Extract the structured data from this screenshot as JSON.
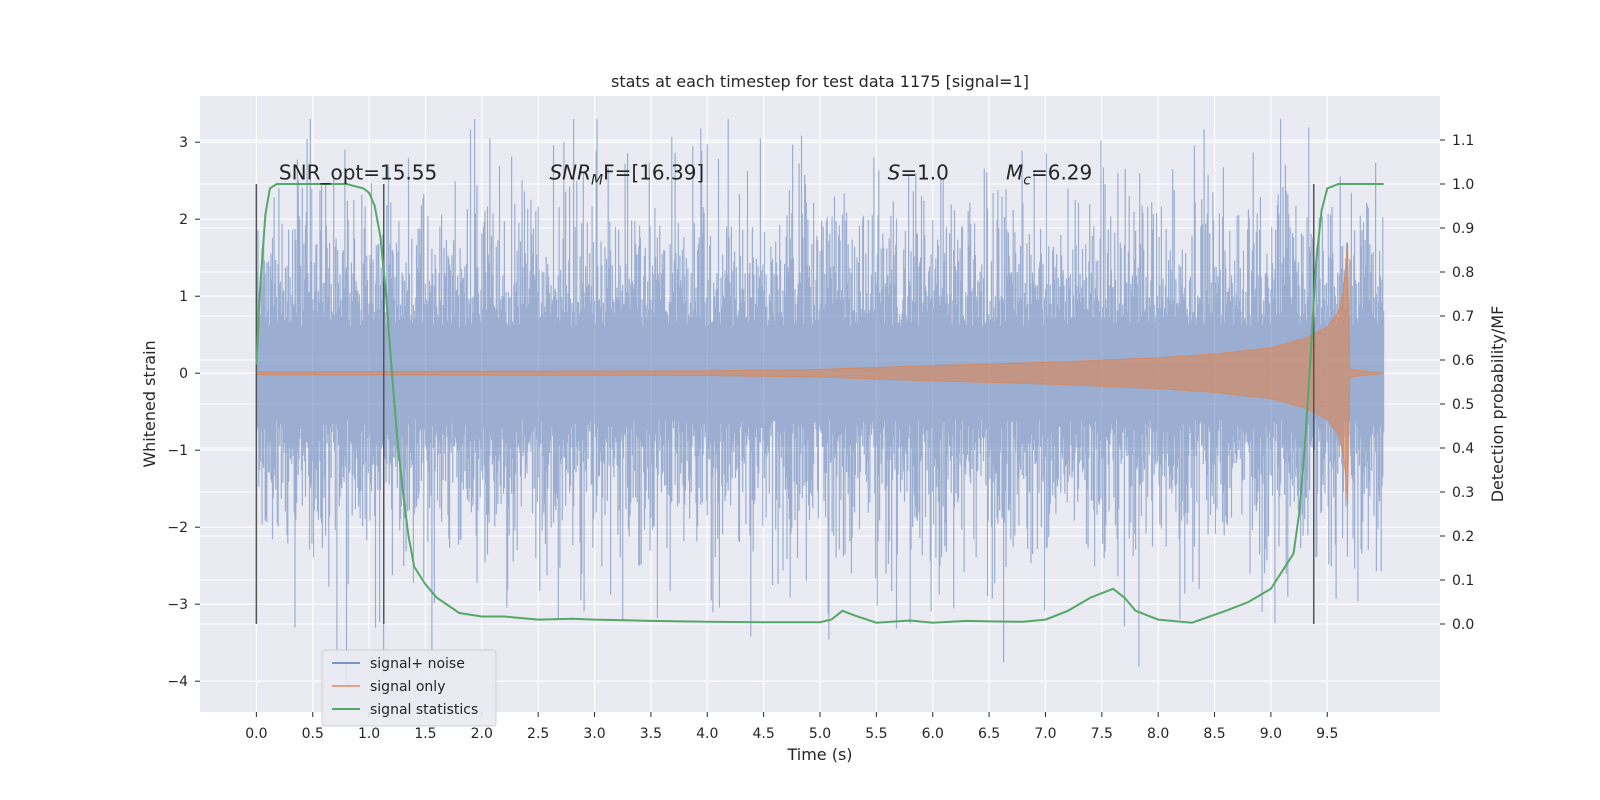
{
  "chart_data": {
    "type": "line",
    "title": "stats at each timestep for test data 1175 [signal=1]",
    "xlabel": "Time (s)",
    "ylabel": "Whitened strain",
    "ylabel_right": "Detection probability/MF",
    "xlim": [
      -0.5,
      10.5
    ],
    "ylim": [
      -4.4,
      3.6
    ],
    "ylim_right": [
      -0.2,
      1.2
    ],
    "x_ticks": [
      0.0,
      0.5,
      1.0,
      1.5,
      2.0,
      2.5,
      3.0,
      3.5,
      4.0,
      4.5,
      5.0,
      5.5,
      6.0,
      6.5,
      7.0,
      7.5,
      8.0,
      8.5,
      9.0,
      9.5
    ],
    "x_tick_labels": [
      "0.0",
      "0.5",
      "1.0",
      "1.5",
      "2.0",
      "2.5",
      "3.0",
      "3.5",
      "4.0",
      "4.5",
      "5.0",
      "5.5",
      "6.0",
      "6.5",
      "7.0",
      "7.5",
      "8.0",
      "8.5",
      "9.0",
      "9.5"
    ],
    "y_ticks": [
      -4,
      -3,
      -2,
      -1,
      0,
      1,
      2,
      3
    ],
    "y_tick_labels": [
      "−4",
      "−3",
      "−2",
      "−1",
      "0",
      "1",
      "2",
      "3"
    ],
    "y_right_ticks": [
      0.0,
      0.1,
      0.2,
      0.3,
      0.4,
      0.5,
      0.6,
      0.7,
      0.8,
      0.9,
      1.0,
      1.1
    ],
    "y_right_tick_labels": [
      "0.0",
      "0.1",
      "0.2",
      "0.3",
      "0.4",
      "0.5",
      "0.6",
      "0.7",
      "0.8",
      "0.9",
      "1.0",
      "1.1"
    ],
    "grid": true,
    "legend_position": "lower-left",
    "series": [
      {
        "name": "signal+ noise",
        "color": "#4c72b0",
        "axis": "left",
        "x_range": [
          0.0,
          10.0
        ],
        "typical_range": [
          -1.6,
          1.6
        ],
        "approx_extremes": {
          "max": 3.3,
          "min": -4.05
        }
      },
      {
        "name": "signal only",
        "color": "#dd8452",
        "axis": "left",
        "x_range": [
          0.0,
          10.0
        ],
        "envelope": {
          "x": [
            0.0,
            4.0,
            5.0,
            6.0,
            7.0,
            8.0,
            8.5,
            9.0,
            9.3,
            9.5,
            9.6,
            9.65,
            9.68,
            9.7,
            10.0
          ],
          "amplitude": [
            0.02,
            0.03,
            0.05,
            0.1,
            0.14,
            0.2,
            0.25,
            0.33,
            0.45,
            0.6,
            0.8,
            1.1,
            1.7,
            0.05,
            0.0
          ]
        }
      },
      {
        "name": "signal statistics",
        "color": "#55a868",
        "axis": "right",
        "x": [
          0.0,
          0.03,
          0.08,
          0.12,
          0.18,
          0.25,
          0.4,
          0.6,
          0.8,
          0.95,
          1.0,
          1.05,
          1.1,
          1.15,
          1.2,
          1.25,
          1.3,
          1.35,
          1.4,
          1.5,
          1.6,
          1.8,
          2.0,
          2.2,
          2.5,
          2.8,
          3.0,
          3.5,
          4.0,
          4.5,
          5.0,
          5.1,
          5.2,
          5.3,
          5.5,
          5.8,
          6.0,
          6.3,
          6.5,
          6.8,
          7.0,
          7.2,
          7.4,
          7.6,
          7.7,
          7.8,
          8.0,
          8.3,
          8.6,
          8.8,
          9.0,
          9.2,
          9.25,
          9.3,
          9.35,
          9.4,
          9.45,
          9.5,
          9.6,
          9.8,
          10.0
        ],
        "y": [
          0.59,
          0.75,
          0.93,
          0.99,
          1.0,
          1.0,
          1.0,
          1.0,
          1.0,
          0.99,
          0.98,
          0.95,
          0.88,
          0.75,
          0.58,
          0.42,
          0.3,
          0.2,
          0.13,
          0.09,
          0.06,
          0.025,
          0.017,
          0.017,
          0.01,
          0.012,
          0.01,
          0.007,
          0.005,
          0.004,
          0.004,
          0.01,
          0.03,
          0.02,
          0.003,
          0.008,
          0.003,
          0.007,
          0.006,
          0.005,
          0.01,
          0.03,
          0.06,
          0.08,
          0.06,
          0.03,
          0.01,
          0.003,
          0.03,
          0.05,
          0.08,
          0.16,
          0.25,
          0.4,
          0.6,
          0.82,
          0.94,
          0.99,
          1.0,
          1.0,
          1.0
        ]
      }
    ],
    "vlines": [
      {
        "x": 0.0,
        "color": "#555555"
      },
      {
        "x": 1.13,
        "color": "#555555"
      },
      {
        "x": 9.38,
        "color": "#555555"
      }
    ],
    "annotations": [
      {
        "text": "SNR_opt=15.55",
        "x": 0.2
      },
      {
        "text": "SNR",
        "subscript": "M",
        "suffix": "F=[16.39]",
        "italic": true,
        "x": 2.6
      },
      {
        "text": "S",
        "suffix": "=1.0",
        "italic": true,
        "x": 5.6
      },
      {
        "text": "M",
        "subscript": "c",
        "suffix": "=6.29",
        "italic": true,
        "x": 6.65
      }
    ]
  },
  "legend": {
    "items": [
      {
        "label": "signal+ noise",
        "color": "#4c72b0"
      },
      {
        "label": "signal only",
        "color": "#dd8452"
      },
      {
        "label": "signal statistics",
        "color": "#55a868"
      }
    ]
  }
}
